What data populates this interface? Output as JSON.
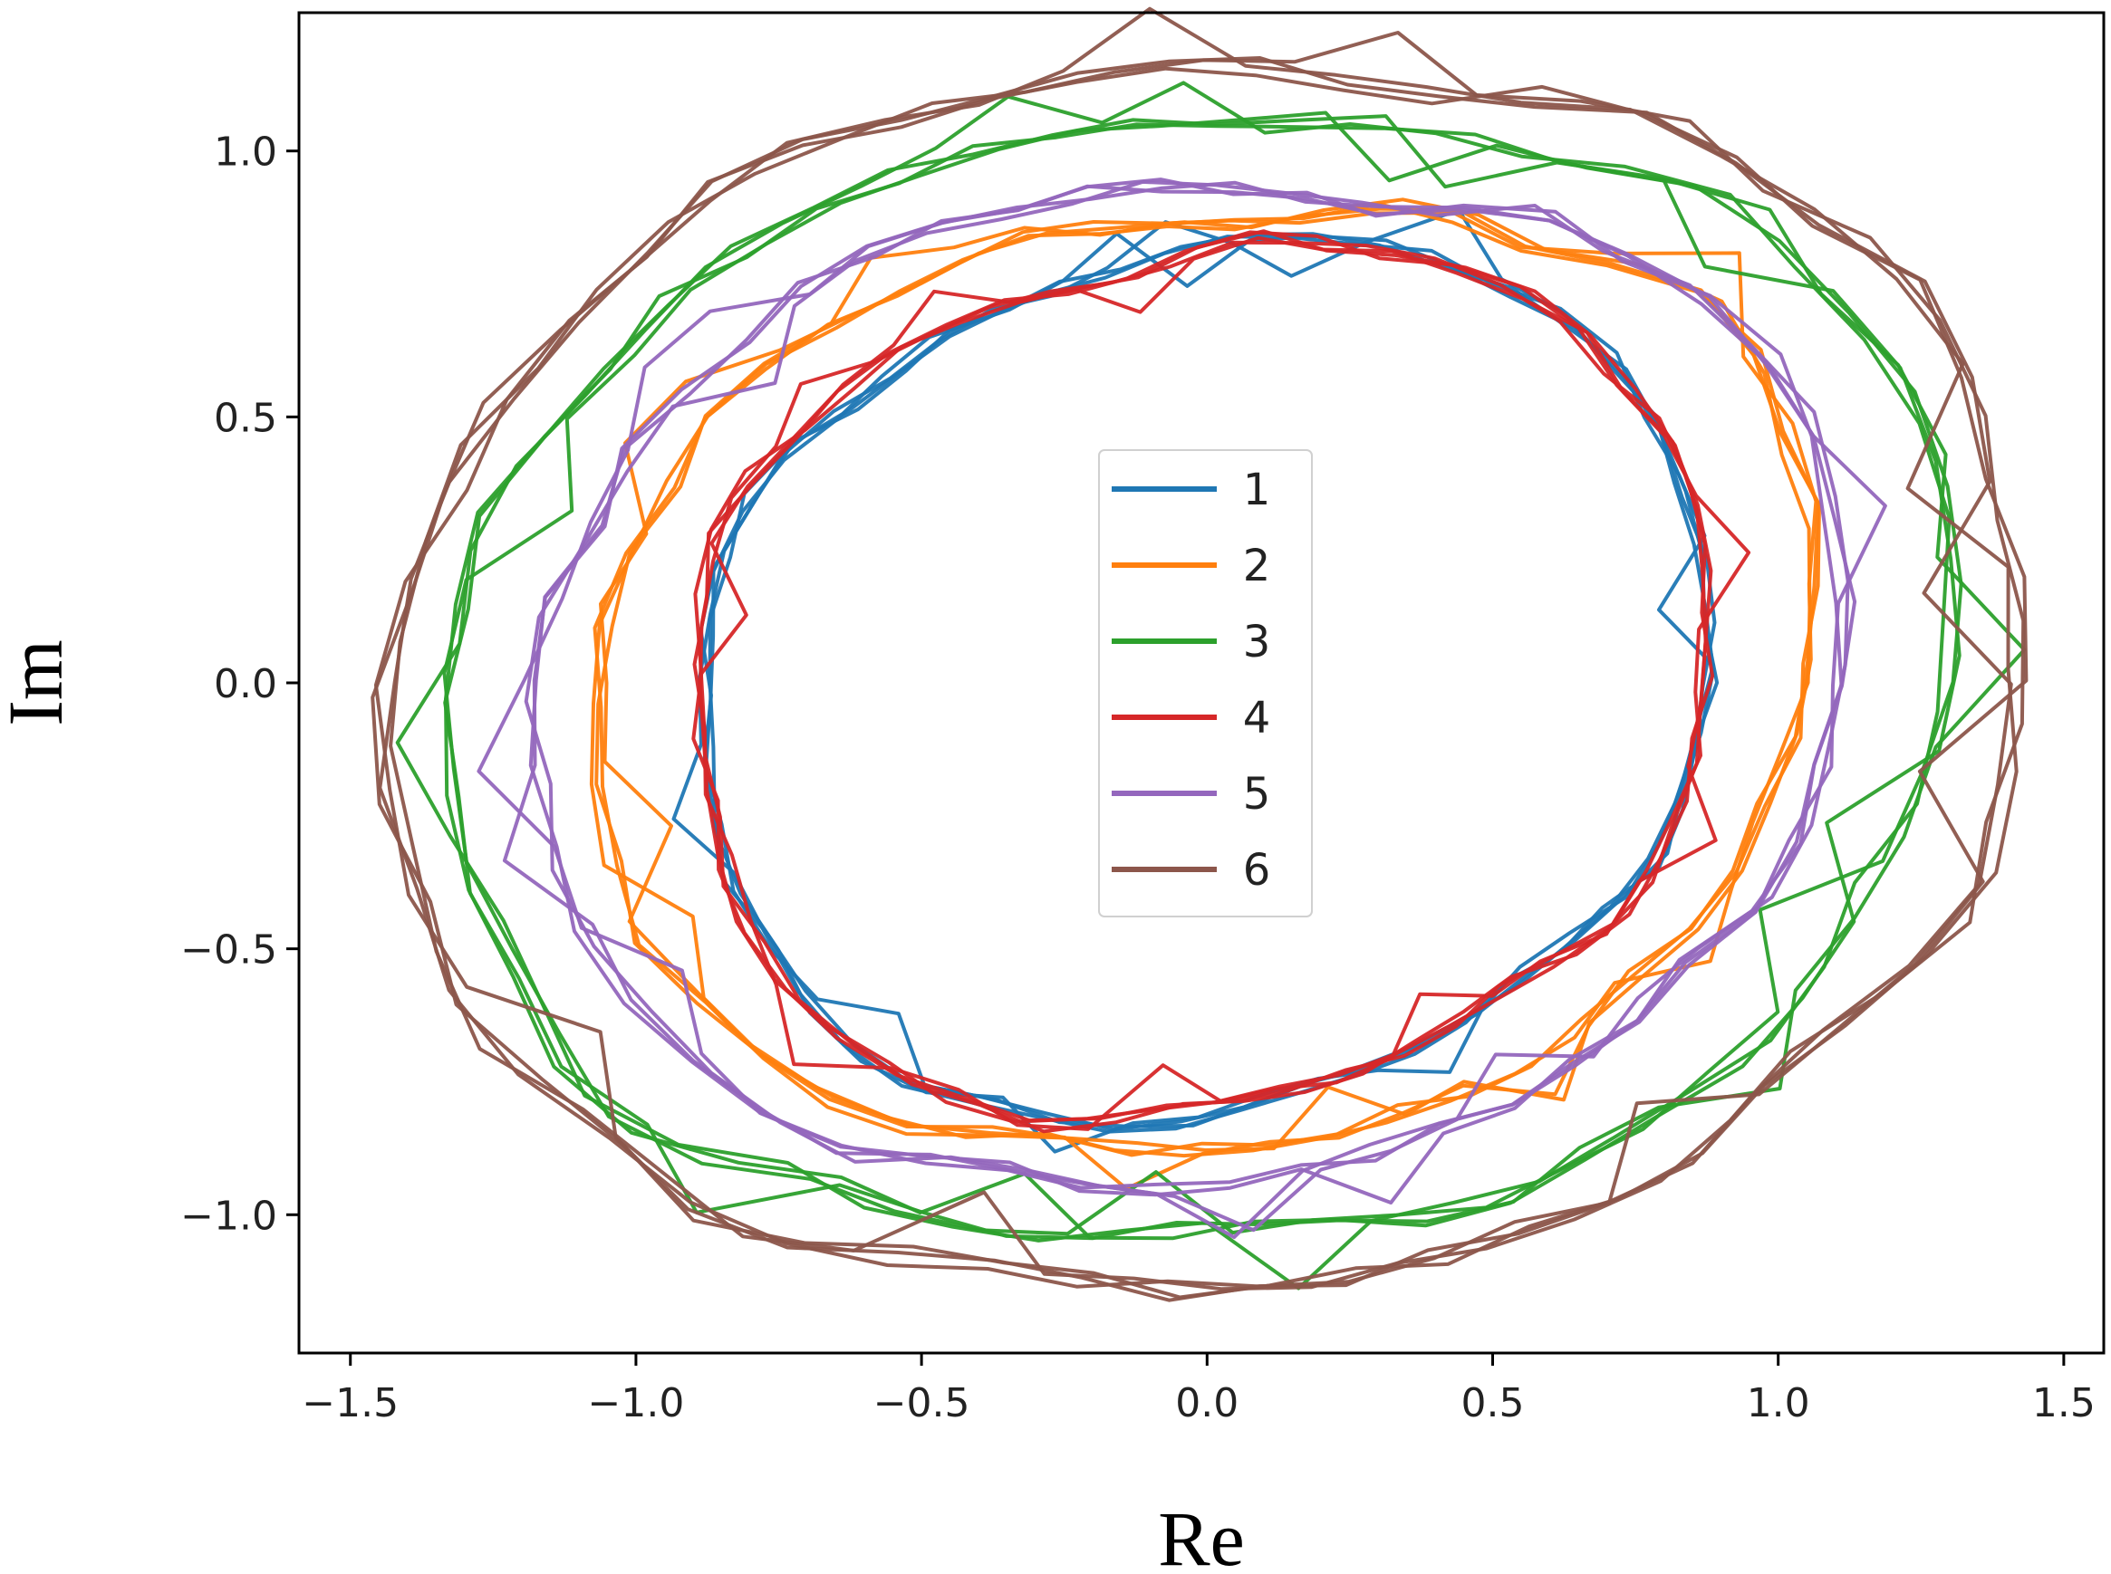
{
  "chart_data": {
    "type": "line",
    "title": "",
    "xlabel": "Re",
    "ylabel": "Im",
    "xlim": [
      -1.59,
      1.57
    ],
    "ylim": [
      -1.26,
      1.26
    ],
    "xticks": [
      -1.5,
      -1.0,
      -0.5,
      0.0,
      0.5,
      1.0,
      1.5
    ],
    "yticks": [
      -1.0,
      -0.5,
      0.0,
      0.5,
      1.0
    ],
    "xtick_labels": [
      "−1.5",
      "−1.0",
      "−0.5",
      "0.0",
      "0.5",
      "1.0",
      "1.5"
    ],
    "ytick_labels": [
      "−1.0",
      "−0.5",
      "0.0",
      "0.5",
      "1.0"
    ],
    "grid": false,
    "legend_position": "center",
    "series": [
      {
        "name": "1",
        "color": "#1f77b4",
        "cx": 0.01,
        "cy": 0.0,
        "samples": [
          {
            "x": 0.88,
            "y": 0.0
          },
          {
            "x": 0.85,
            "y": 0.3
          },
          {
            "x": 0.72,
            "y": 0.6
          },
          {
            "x": 0.45,
            "y": 0.78
          },
          {
            "x": 0.15,
            "y": 0.84
          },
          {
            "x": -0.2,
            "y": 0.76
          },
          {
            "x": -0.55,
            "y": 0.58
          },
          {
            "x": -0.8,
            "y": 0.35
          },
          {
            "x": -0.88,
            "y": 0.0
          },
          {
            "x": -0.82,
            "y": -0.4
          },
          {
            "x": -0.6,
            "y": -0.7
          },
          {
            "x": -0.25,
            "y": -0.82
          },
          {
            "x": 0.2,
            "y": -0.75
          },
          {
            "x": 0.55,
            "y": -0.55
          },
          {
            "x": 0.8,
            "y": -0.3
          }
        ]
      },
      {
        "name": "2",
        "color": "#ff7f0e",
        "cx": 0.02,
        "cy": 0.0,
        "samples": [
          {
            "x": 1.05,
            "y": 0.0
          },
          {
            "x": 1.05,
            "y": 0.35
          },
          {
            "x": 0.9,
            "y": 0.7
          },
          {
            "x": 0.5,
            "y": 0.85
          },
          {
            "x": 0.0,
            "y": 0.86
          },
          {
            "x": -0.5,
            "y": 0.77
          },
          {
            "x": -0.9,
            "y": 0.45
          },
          {
            "x": -1.07,
            "y": 0.0
          },
          {
            "x": -1.0,
            "y": -0.45
          },
          {
            "x": -0.7,
            "y": -0.75
          },
          {
            "x": -0.2,
            "y": -0.86
          },
          {
            "x": 0.3,
            "y": -0.82
          },
          {
            "x": 0.7,
            "y": -0.6
          },
          {
            "x": 0.95,
            "y": -0.3
          }
        ]
      },
      {
        "name": "3",
        "color": "#2ca02c",
        "cx": -0.02,
        "cy": 0.01,
        "samples": [
          {
            "x": 1.3,
            "y": 0.0
          },
          {
            "x": 1.25,
            "y": 0.5
          },
          {
            "x": 1.0,
            "y": 0.85
          },
          {
            "x": 0.5,
            "y": 1.0
          },
          {
            "x": 0.0,
            "y": 1.05
          },
          {
            "x": -0.55,
            "y": 0.95
          },
          {
            "x": -1.0,
            "y": 0.65
          },
          {
            "x": -1.3,
            "y": 0.2
          },
          {
            "x": -1.3,
            "y": -0.3
          },
          {
            "x": -1.1,
            "y": -0.75
          },
          {
            "x": -0.6,
            "y": -0.97
          },
          {
            "x": 0.0,
            "y": -1.03
          },
          {
            "x": 0.6,
            "y": -0.92
          },
          {
            "x": 1.05,
            "y": -0.55
          }
        ]
      },
      {
        "name": "4",
        "color": "#d62728",
        "cx": 0.0,
        "cy": 0.0,
        "samples": [
          {
            "x": 0.87,
            "y": 0.0
          },
          {
            "x": 0.85,
            "y": 0.35
          },
          {
            "x": 0.6,
            "y": 0.7
          },
          {
            "x": 0.2,
            "y": 0.83
          },
          {
            "x": -0.2,
            "y": 0.75
          },
          {
            "x": -0.6,
            "y": 0.58
          },
          {
            "x": -0.85,
            "y": 0.3
          },
          {
            "x": -0.88,
            "y": -0.15
          },
          {
            "x": -0.75,
            "y": -0.55
          },
          {
            "x": -0.4,
            "y": -0.8
          },
          {
            "x": 0.05,
            "y": -0.78
          },
          {
            "x": 0.45,
            "y": -0.62
          },
          {
            "x": 0.78,
            "y": -0.35
          }
        ]
      },
      {
        "name": "5",
        "color": "#9467bd",
        "cx": -0.02,
        "cy": 0.0,
        "samples": [
          {
            "x": 1.12,
            "y": 0.1
          },
          {
            "x": 1.0,
            "y": 0.6
          },
          {
            "x": 0.7,
            "y": 0.82
          },
          {
            "x": 0.2,
            "y": 0.9
          },
          {
            "x": -0.3,
            "y": 0.9
          },
          {
            "x": -0.75,
            "y": 0.7
          },
          {
            "x": -1.05,
            "y": 0.35
          },
          {
            "x": -1.18,
            "y": 0.0
          },
          {
            "x": -1.1,
            "y": -0.45
          },
          {
            "x": -0.8,
            "y": -0.8
          },
          {
            "x": -0.3,
            "y": -0.92
          },
          {
            "x": 0.3,
            "y": -0.88
          },
          {
            "x": 0.75,
            "y": -0.62
          },
          {
            "x": 1.05,
            "y": -0.25
          }
        ]
      },
      {
        "name": "6",
        "color": "#8c564b",
        "cx": 0.01,
        "cy": 0.0,
        "samples": [
          {
            "x": 1.42,
            "y": 0.15
          },
          {
            "x": 1.3,
            "y": 0.65
          },
          {
            "x": 0.9,
            "y": 1.0
          },
          {
            "x": 0.3,
            "y": 1.12
          },
          {
            "x": -0.4,
            "y": 1.1
          },
          {
            "x": -0.95,
            "y": 0.85
          },
          {
            "x": -1.3,
            "y": 0.4
          },
          {
            "x": -1.45,
            "y": -0.1
          },
          {
            "x": -1.3,
            "y": -0.6
          },
          {
            "x": -0.95,
            "y": -0.95
          },
          {
            "x": -0.3,
            "y": -1.1
          },
          {
            "x": 0.4,
            "y": -1.08
          },
          {
            "x": 1.0,
            "y": -0.75
          },
          {
            "x": 1.38,
            "y": -0.3
          }
        ]
      }
    ]
  }
}
